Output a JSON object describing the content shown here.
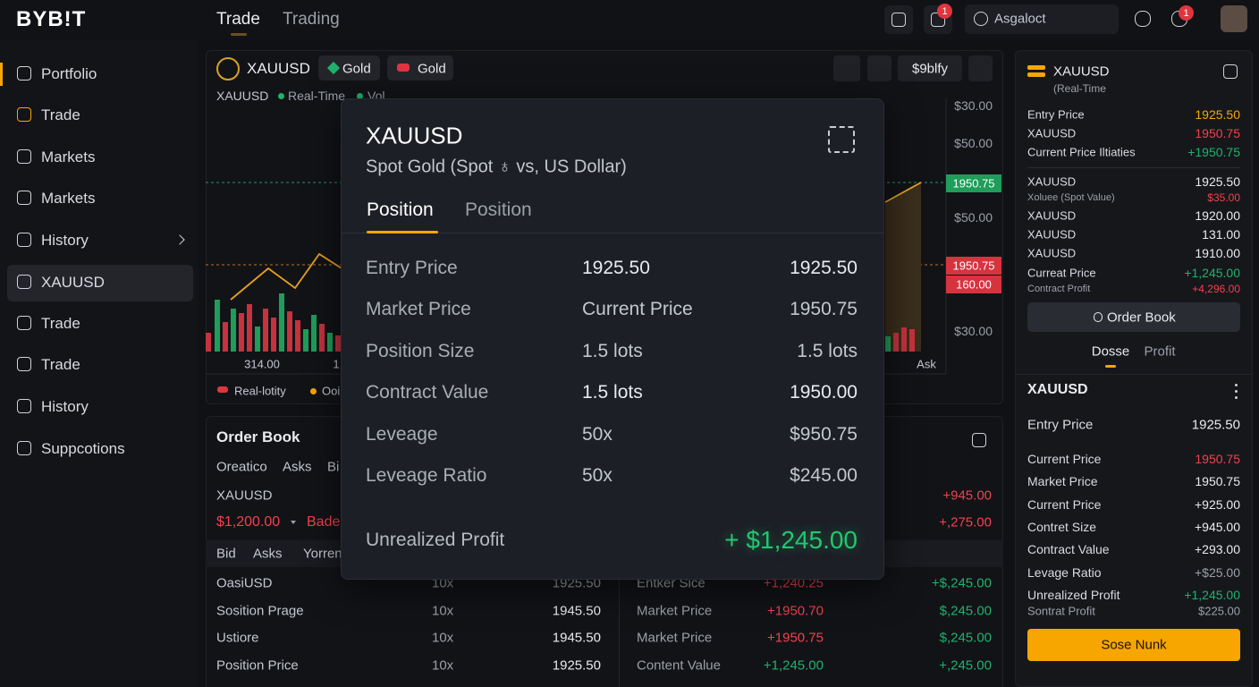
{
  "header": {
    "logo": "BYB!T",
    "tabs": [
      "Trade",
      "Trading"
    ],
    "badges": [
      "1",
      "1"
    ],
    "search": "Asgaloct"
  },
  "sidebar": {
    "items": [
      "Portfolio",
      "Trade",
      "Markets",
      "Markets",
      "History",
      "XAUUSD",
      "Trade",
      "Trade",
      "History",
      "Suppcotions"
    ]
  },
  "chart_panel": {
    "symbol": "XAUUSD",
    "tags": [
      "Gold",
      "Gold"
    ],
    "dropdown": "$9blfy",
    "subtitle": [
      "XAUUSD",
      "Real-Time",
      "Vol"
    ],
    "price_labels": [
      "$30.00",
      "$50.00",
      "$50.00",
      "$30.00"
    ],
    "price_badges": [
      "1950.75",
      "1950.75",
      "160.00"
    ],
    "x_labels": [
      "314.00",
      "1",
      "Ask"
    ],
    "legend": [
      "Real-lotity",
      "Ooi"
    ]
  },
  "order_book": {
    "title": "Order Book",
    "tabs": [
      "Oreatico",
      "Asks",
      "Bi"
    ],
    "symbol": "XAUUSD",
    "price": "$1,200.00",
    "side": "Bade",
    "columns": [
      "Bid",
      "Asks",
      "Yorren"
    ],
    "rows": [
      [
        "OasiUSD",
        "10x",
        "1925.50"
      ],
      [
        "Sosition Prage",
        "10x",
        "1945.50"
      ],
      [
        "Ustiore",
        "10x",
        "1945.50"
      ],
      [
        "Position Price",
        "10x",
        "1925.50"
      ]
    ],
    "right_totals": [
      "+945.00",
      "+,275.00"
    ],
    "right_rows": [
      [
        "Entker Sice",
        "+1,240.25",
        "+$,245.00"
      ],
      [
        "Market Price",
        "+1950.70",
        "$,245.00"
      ],
      [
        "Market Price",
        "+1950.75",
        "$,245.00"
      ],
      [
        "Content Value",
        "+1,245.00",
        "+,245.00"
      ]
    ]
  },
  "modal": {
    "title": "XAUUSD",
    "subtitle": "Spot Gold (Spot ♁ vs, US Dollar)",
    "tabs": [
      "Position",
      "Position"
    ],
    "rows": [
      [
        "Entry Price",
        "1925.50",
        "1925.50"
      ],
      [
        "Market Price",
        "Current Price",
        "1950.75"
      ],
      [
        "Position Size",
        "1.5 lots",
        "1.5 lots"
      ],
      [
        "Contract Value",
        "1.5 lots",
        "1950.00"
      ],
      [
        "Leveage",
        "50x",
        "$950.75"
      ],
      [
        "Leveage Ratio",
        "50x",
        "$245.00"
      ]
    ],
    "profit_label": "Unrealized Profit",
    "profit_value": "+ $1,245.00"
  },
  "right_panel": {
    "symbol": "XAUUSD",
    "status": "(Real-Time",
    "rows": [
      [
        "Entry Price",
        "1925.50"
      ],
      [
        "XAUUSD",
        "1950.75"
      ],
      [
        "Current Price Iltiaties",
        "+1950.75"
      ],
      [
        "XAUUSD",
        "1925.50"
      ],
      [
        "Xoluee (Spot Value)",
        "$35.00"
      ],
      [
        "XAUUSD",
        "1920.00"
      ],
      [
        "XAUUSD",
        "131.00"
      ],
      [
        "XAUUSD",
        "1910.00"
      ],
      [
        "Curreat Price",
        "+1,245.00"
      ],
      [
        "Contract Profit",
        "+4,296.00"
      ]
    ],
    "button": "Order Book",
    "tabs": [
      "Dosse",
      "Profit"
    ],
    "section_title": "XAUUSD",
    "section_rows": [
      [
        "Entry Price",
        "1925.50"
      ],
      [
        "Current Price",
        "1950.75"
      ],
      [
        "Market Price",
        "1950.75"
      ],
      [
        "Current Price",
        "+925.00"
      ],
      [
        "Contret Size",
        "+945.00"
      ],
      [
        "Contract Value",
        "+293.00"
      ],
      [
        "Levage Ratio",
        "+$25.00"
      ],
      [
        "Unrealized Profit",
        "+1,245.00"
      ],
      [
        "Sontrat Profit",
        "$225.00"
      ]
    ],
    "action": "Sose Nunk"
  }
}
